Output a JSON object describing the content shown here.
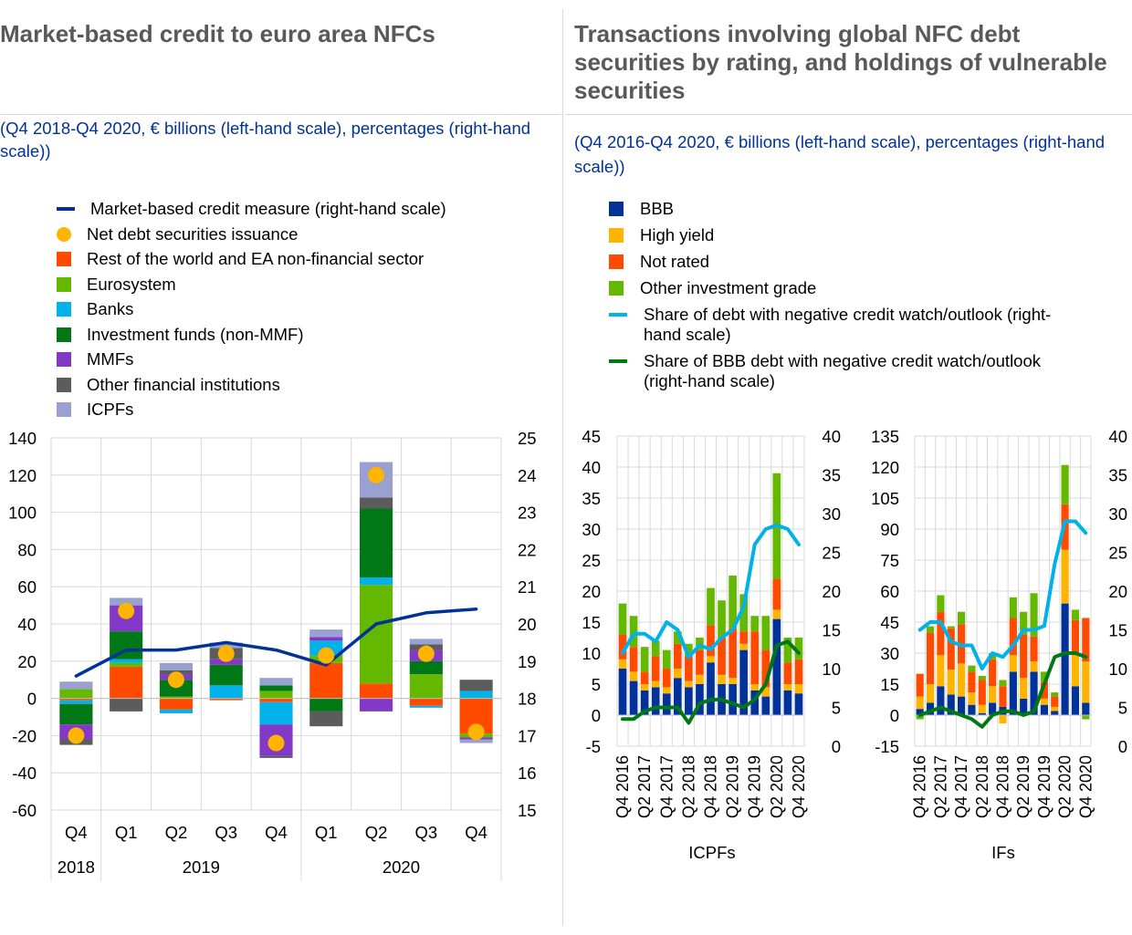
{
  "left": {
    "title": "Market-based credit to euro area NFCs",
    "subtitle": "(Q4 2018-Q4 2020, € billions (left-hand scale), percentages (right-hand scale))",
    "legend": [
      {
        "label": "Market-based credit measure (right-hand scale)",
        "color": "#003299",
        "shape": "line"
      },
      {
        "label": "Net debt securities issuance",
        "color": "#ffb400",
        "shape": "dot"
      },
      {
        "label": "Rest of the world and EA non-financial sector",
        "color": "#ff4b00",
        "shape": "square"
      },
      {
        "label": "Eurosystem",
        "color": "#65b800",
        "shape": "square"
      },
      {
        "label": "Banks",
        "color": "#00b1ea",
        "shape": "square"
      },
      {
        "label": "Investment funds (non-MMF)",
        "color": "#007816",
        "shape": "square"
      },
      {
        "label": "MMFs",
        "color": "#8139c6",
        "shape": "square"
      },
      {
        "label": "Other financial institutions",
        "color": "#5c5c5c",
        "shape": "square"
      },
      {
        "label": "ICPFs",
        "color": "#98a1d0",
        "shape": "square"
      }
    ]
  },
  "right": {
    "title": "Transactions involving global NFC debt securities by rating, and holdings of vulnerable securities",
    "subtitle": "(Q4 2016-Q4 2020, € billions (left-hand scale), percentages (right-hand scale))",
    "legend": [
      {
        "label": "BBB",
        "color": "#003299",
        "shape": "square"
      },
      {
        "label": "High yield",
        "color": "#ffb400",
        "shape": "square"
      },
      {
        "label": "Not rated",
        "color": "#ff4b00",
        "shape": "square"
      },
      {
        "label": "Other investment grade",
        "color": "#65b800",
        "shape": "square"
      },
      {
        "label": "Share of debt with negative credit watch/outlook (right-hand scale)",
        "color": "#00b1ea",
        "shape": "line"
      },
      {
        "label": "Share of BBB debt with negative credit watch/outlook (right-hand scale)",
        "color": "#007816",
        "shape": "line"
      }
    ]
  },
  "chart_data": [
    {
      "type": "bar",
      "stacked": true,
      "categories": [
        "Q4",
        "Q1",
        "Q2",
        "Q3",
        "Q4",
        "Q1",
        "Q2",
        "Q3",
        "Q4"
      ],
      "category_years": [
        {
          "label": "2018",
          "from": 0,
          "to": 0
        },
        {
          "label": "2019",
          "from": 1,
          "to": 4
        },
        {
          "label": "2020",
          "from": 5,
          "to": 8
        }
      ],
      "ylim": [
        -60,
        140
      ],
      "yticks": [
        -60,
        -40,
        -20,
        0,
        20,
        40,
        60,
        80,
        100,
        120,
        140
      ],
      "y2lim": [
        15,
        25
      ],
      "y2ticks": [
        15,
        16,
        17,
        18,
        19,
        20,
        21,
        22,
        23,
        24,
        25
      ],
      "grid": true,
      "series": [
        {
          "name": "Rest of the world and EA non-financial sector",
          "color": "#ff4b00",
          "values": [
            -1,
            17,
            -6,
            -1,
            -2,
            19,
            8,
            -4,
            -19
          ]
        },
        {
          "name": "Eurosystem",
          "color": "#65b800",
          "values": [
            5,
            2,
            1,
            0,
            4,
            4,
            53,
            13,
            -2
          ]
        },
        {
          "name": "Banks",
          "color": "#00b1ea",
          "values": [
            -2,
            2,
            -2,
            7,
            -12,
            8,
            4,
            -1,
            4
          ]
        },
        {
          "name": "Investment funds (non-MMF)",
          "color": "#007816",
          "values": [
            -11,
            15,
            9,
            11,
            3,
            -7,
            37,
            7,
            0
          ]
        },
        {
          "name": "MMFs",
          "color": "#8139c6",
          "values": [
            -8,
            14,
            3,
            3,
            -17,
            2,
            -7,
            6,
            -1
          ]
        },
        {
          "name": "Other financial institutions",
          "color": "#5c5c5c",
          "values": [
            -3,
            -7,
            2,
            6,
            -1,
            -8,
            6,
            3,
            6
          ]
        },
        {
          "name": "ICPFs",
          "color": "#98a1d0",
          "values": [
            4,
            4,
            4,
            3,
            4,
            4,
            19,
            3,
            -2
          ]
        }
      ],
      "markers": {
        "name": "Net debt securities issuance",
        "color": "#ffb400",
        "values": [
          -20,
          47,
          10,
          24,
          -24,
          23,
          120,
          24,
          -18
        ]
      },
      "line": {
        "name": "Market-based credit measure (right-hand scale)",
        "color": "#003299",
        "axis": "right",
        "values": [
          18.6,
          19.3,
          19.3,
          19.5,
          19.3,
          18.9,
          20.0,
          20.3,
          20.4
        ]
      }
    },
    {
      "type": "bar",
      "stacked": true,
      "xlabel": "ICPFs",
      "x": [
        "Q4 2016",
        "Q1 2017",
        "Q2 2017",
        "Q3 2017",
        "Q4 2017",
        "Q1 2018",
        "Q2 2018",
        "Q3 2018",
        "Q4 2018",
        "Q1 2019",
        "Q2 2019",
        "Q3 2019",
        "Q4 2019",
        "Q1 2020",
        "Q2 2020",
        "Q3 2020",
        "Q4 2020"
      ],
      "xticks": [
        "Q4 2016",
        "Q2 2017",
        "Q4 2017",
        "Q2 2018",
        "Q4 2018",
        "Q2 2019",
        "Q4 2019",
        "Q2 2020",
        "Q4 2020"
      ],
      "ylim": [
        -5,
        45
      ],
      "yticks": [
        -5,
        0,
        5,
        10,
        15,
        20,
        25,
        30,
        35,
        40,
        45
      ],
      "y2lim": [
        0,
        40
      ],
      "y2ticks": [
        0,
        5,
        10,
        15,
        20,
        25,
        30,
        35,
        40
      ],
      "grid": true,
      "series": [
        {
          "name": "BBB",
          "color": "#003299",
          "values": [
            7.5,
            5.5,
            4,
            4.5,
            3.5,
            6,
            4.5,
            5,
            8.5,
            5,
            5,
            10.5,
            4,
            3,
            15.5,
            4,
            3.5
          ]
        },
        {
          "name": "High yield",
          "color": "#ffb400",
          "values": [
            1.5,
            1.5,
            1,
            1,
            1,
            1.5,
            1,
            1.5,
            1,
            1.5,
            1,
            1,
            1,
            1.5,
            1.5,
            1,
            1.5
          ]
        },
        {
          "name": "Not rated",
          "color": "#ff4b00",
          "values": [
            4,
            4,
            2,
            4,
            3,
            4,
            4,
            4,
            5,
            6,
            8,
            2,
            8.5,
            6,
            5,
            3.5,
            4
          ]
        },
        {
          "name": "Other investment grade",
          "color": "#65b800",
          "values": [
            5,
            5,
            4,
            2.5,
            3,
            2,
            2,
            2,
            6,
            6,
            8.5,
            6,
            2.5,
            5.5,
            17,
            4,
            3.5
          ]
        }
      ],
      "lines": [
        {
          "name": "Share of debt with negative credit watch/outlook (right-hand scale)",
          "color": "#00b1ea",
          "axis": "right",
          "values": [
            12,
            14.5,
            14.5,
            13.5,
            16,
            15,
            11.5,
            13,
            12.5,
            14,
            15,
            18,
            26,
            28,
            28.5,
            28,
            26
          ]
        },
        {
          "name": "Share of BBB debt with negative credit watch/outlook (right-hand scale)",
          "color": "#007816",
          "axis": "right",
          "values": [
            3.5,
            3.5,
            4.5,
            5,
            5,
            5,
            3,
            5.5,
            6,
            6,
            5.5,
            5,
            6,
            8,
            13,
            13.5,
            12
          ]
        }
      ]
    },
    {
      "type": "bar",
      "stacked": true,
      "xlabel": "IFs",
      "x": [
        "Q4 2016",
        "Q1 2017",
        "Q2 2017",
        "Q3 2017",
        "Q4 2017",
        "Q1 2018",
        "Q2 2018",
        "Q3 2018",
        "Q4 2018",
        "Q1 2019",
        "Q2 2019",
        "Q3 2019",
        "Q4 2019",
        "Q1 2020",
        "Q2 2020",
        "Q3 2020",
        "Q4 2020"
      ],
      "xticks": [
        "Q4 2016",
        "Q2 2017",
        "Q4 2017",
        "Q2 2018",
        "Q4 2018",
        "Q2 2019",
        "Q4 2019",
        "Q2 2020",
        "Q4 2020"
      ],
      "ylim": [
        -15,
        135
      ],
      "yticks": [
        -15,
        0,
        15,
        30,
        45,
        60,
        75,
        90,
        105,
        120,
        135
      ],
      "y2lim": [
        0,
        40
      ],
      "y2ticks": [
        0,
        5,
        10,
        15,
        20,
        25,
        30,
        35,
        40
      ],
      "grid": true,
      "series": [
        {
          "name": "BBB",
          "color": "#003299",
          "values": [
            3,
            6,
            14,
            10,
            9,
            5,
            1,
            6,
            4,
            21,
            8,
            21,
            5,
            2,
            54,
            14,
            6
          ]
        },
        {
          "name": "High yield",
          "color": "#ffb400",
          "values": [
            6,
            9,
            15,
            12,
            16,
            6,
            4,
            8,
            -4,
            8,
            10,
            5,
            3,
            2,
            26,
            15,
            20
          ]
        },
        {
          "name": "Not rated",
          "color": "#ff4b00",
          "values": [
            11,
            25,
            21,
            20,
            19,
            10,
            12,
            13,
            10,
            18,
            21,
            12,
            8,
            5,
            22,
            17,
            21
          ]
        },
        {
          "name": "Other investment grade",
          "color": "#65b800",
          "values": [
            -2,
            3,
            8,
            1,
            6,
            3,
            2,
            3,
            3,
            10,
            11,
            21,
            5,
            2,
            19,
            5,
            -2
          ]
        }
      ],
      "lines": [
        {
          "name": "Share of debt with negative credit watch/outlook (right-hand scale)",
          "color": "#00b1ea",
          "axis": "right",
          "values": [
            15,
            16,
            16,
            13.5,
            13,
            13,
            10,
            12,
            11.5,
            13,
            15,
            15,
            15.5,
            23.5,
            29,
            29,
            27.5
          ]
        },
        {
          "name": "Share of BBB debt with negative credit watch/outlook (right-hand scale)",
          "color": "#007816",
          "axis": "right",
          "values": [
            4,
            4.5,
            5,
            4.5,
            4,
            3.5,
            2.5,
            4,
            4.5,
            4.5,
            4,
            4.5,
            8,
            11.5,
            12,
            12,
            11.5
          ]
        }
      ]
    }
  ]
}
